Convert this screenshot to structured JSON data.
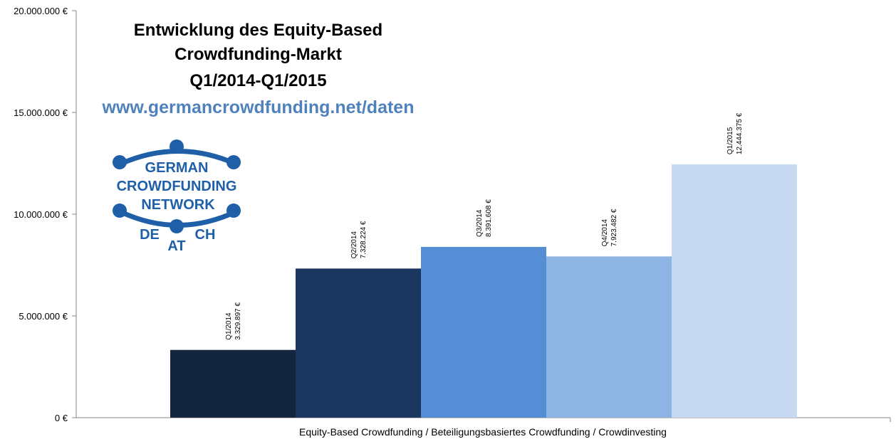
{
  "title_lines": [
    "Entwicklung des Equity-Based",
    "Crowdfunding-Markt",
    "Q1/2014-Q1/2015"
  ],
  "url": "www.germancrowdfunding.net/daten",
  "logo": {
    "line1": "GERMAN",
    "line2": "CROWDFUNDING",
    "line3": "NETWORK",
    "countries": [
      "DE",
      "AT",
      "CH"
    ],
    "color": "#1f5fa8"
  },
  "chart_data": {
    "type": "bar",
    "xlabel": "Equity-Based Crowdfunding / Beteiligungsbasiertes Crowdfunding / Crowdinvesting",
    "ylabel": "",
    "ylim": [
      0,
      20000000
    ],
    "yticks": [
      {
        "value": 0,
        "label": "0 €"
      },
      {
        "value": 5000000,
        "label": "5.000.000 €"
      },
      {
        "value": 10000000,
        "label": "10.000.000 €"
      },
      {
        "value": 15000000,
        "label": "15.000.000 €"
      },
      {
        "value": 20000000,
        "label": "20.000.000 €"
      }
    ],
    "series": [
      {
        "name": "Q1/2014",
        "value": 3329897,
        "value_label": "3.329.897 €",
        "color": "#14253f"
      },
      {
        "name": "Q2/2014",
        "value": 7328224,
        "value_label": "7.328.224 €",
        "color": "#1b3760"
      },
      {
        "name": "Q3/2014",
        "value": 8391608,
        "value_label": "8.391.608 €",
        "color": "#558ed5"
      },
      {
        "name": "Q4/2014",
        "value": 7923482,
        "value_label": "7.923.482 €",
        "color": "#8eb4e3"
      },
      {
        "name": "Q1/2015",
        "value": 12444375,
        "value_label": "12.444.375 €",
        "color": "#c6d9f1"
      }
    ],
    "grid": false,
    "legend": "none"
  }
}
